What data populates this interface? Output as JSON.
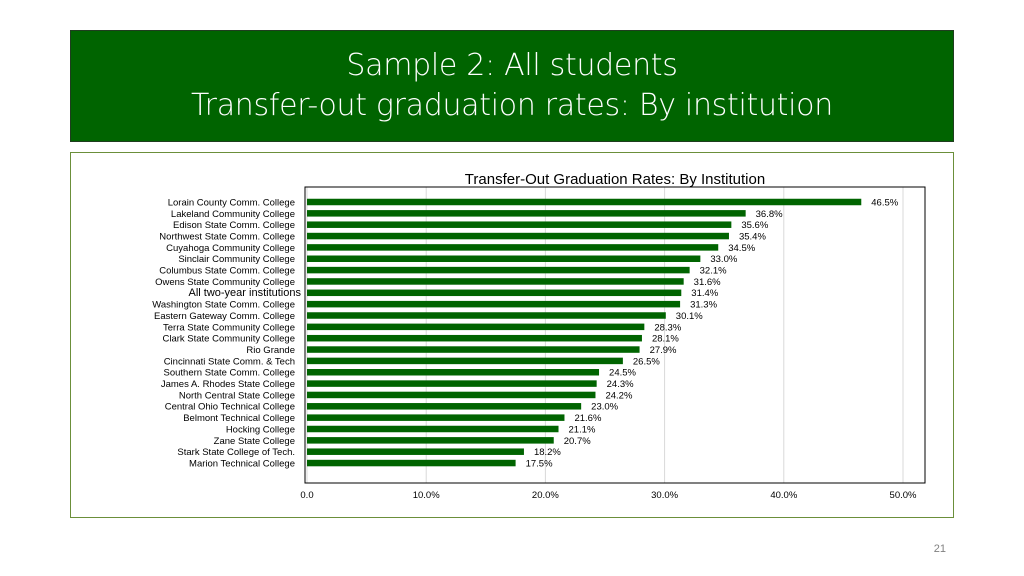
{
  "slide": {
    "title_line1": "Sample 2: All students",
    "title_line2": "Transfer-out graduation rates: By institution",
    "page_number": "21"
  },
  "colors": {
    "title_bg": "#006400",
    "bar": "#006400",
    "frame_border": "#6b8f3a"
  },
  "chart_data": {
    "type": "bar",
    "orientation": "horizontal",
    "title": "Transfer-Out Graduation Rates: By Institution",
    "xlabel": "",
    "ylabel": "",
    "xlim": [
      0,
      50
    ],
    "grid": true,
    "x_ticks": [
      "0.0",
      "10.0%",
      "20.0%",
      "30.0%",
      "40.0%",
      "50.0%"
    ],
    "categories": [
      "Lorain County Comm. College",
      "Lakeland Community College",
      "Edison State Comm. College",
      "Northwest State Comm. College",
      "Cuyahoga Community College",
      "Sinclair Community College",
      "Columbus State Comm. College",
      "Owens State Community College",
      "All two-year institutions",
      "Washington State Comm. College",
      "Eastern Gateway Comm. College",
      "Terra State Community College",
      "Clark State Community College",
      "Rio Grande",
      "Cincinnati State Comm. & Tech",
      "Southern State Comm. College",
      "James A. Rhodes State College",
      "North Central State College",
      "Central Ohio Technical College",
      "Belmont Technical College",
      "Hocking College",
      "Zane State College",
      "Stark State College of Tech.",
      "Marion Technical College"
    ],
    "values": [
      46.5,
      36.8,
      35.6,
      35.4,
      34.5,
      33.0,
      32.1,
      31.6,
      31.4,
      31.3,
      30.1,
      28.3,
      28.1,
      27.9,
      26.5,
      24.5,
      24.3,
      24.2,
      23.0,
      21.6,
      21.1,
      20.7,
      18.2,
      17.5
    ],
    "value_labels": [
      "46.5%",
      "36.8%",
      "35.6%",
      "35.4%",
      "34.5%",
      "33.0%",
      "32.1%",
      "31.6%",
      "31.4%",
      "31.3%",
      "30.1%",
      "28.3%",
      "28.1%",
      "27.9%",
      "26.5%",
      "24.5%",
      "24.3%",
      "24.2%",
      "23.0%",
      "21.6%",
      "21.1%",
      "20.7%",
      "18.2%",
      "17.5%"
    ],
    "highlight_category": "All two-year institutions"
  }
}
